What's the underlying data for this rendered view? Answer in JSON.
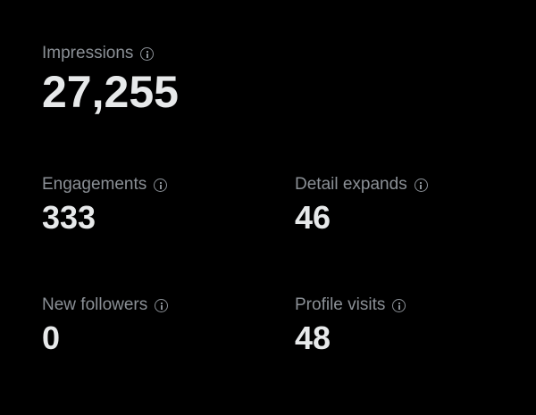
{
  "metrics": [
    {
      "label": "Impressions",
      "value": "27,255"
    },
    {
      "label": "Engagements",
      "value": "333"
    },
    {
      "label": "Detail expands",
      "value": "46"
    },
    {
      "label": "New followers",
      "value": "0"
    },
    {
      "label": "Profile visits",
      "value": "48"
    }
  ],
  "colors": {
    "background": "#000000",
    "label": "#8b9096",
    "value": "#e7e9ea"
  }
}
